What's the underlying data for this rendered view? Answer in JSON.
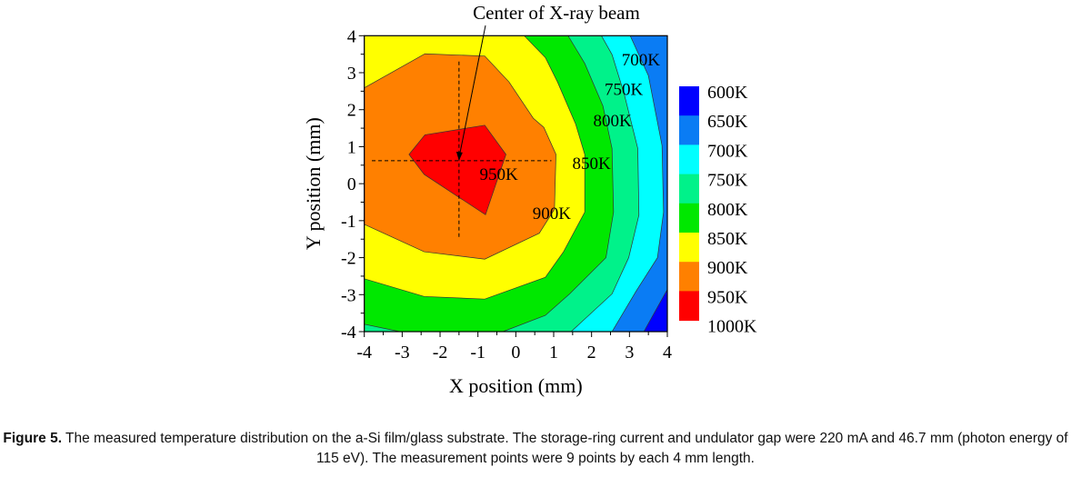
{
  "chart_data": {
    "type": "contour",
    "xlabel": "X position (mm)",
    "ylabel": "Y position (mm)",
    "xlim": [
      -4,
      4
    ],
    "ylim": [
      -4,
      4
    ],
    "xticks": [
      "-4",
      "-3",
      "-2",
      "-1",
      "0",
      "1",
      "2",
      "3",
      "4"
    ],
    "yticks": [
      "-4",
      "-3",
      "-2",
      "-1",
      "0",
      "1",
      "2",
      "3",
      "4"
    ],
    "grid": false,
    "annotation": {
      "text": "Center of X-ray beam",
      "point": [
        -1.5,
        0.62
      ]
    },
    "crosshair": {
      "x": -1.5,
      "y": 0.62
    },
    "legend": {
      "placement": "right",
      "labels": [
        "600K",
        "650K",
        "700K",
        "750K",
        "800K",
        "850K",
        "900K",
        "950K",
        "1000K"
      ],
      "colors": [
        "#0000ff",
        "#0a7cf4",
        "#00ffff",
        "#00f28a",
        "#00e800",
        "#ffff00",
        "#ff8000",
        "#ff0000"
      ]
    },
    "contour_labels": [
      {
        "text": "700K",
        "at": [
          3.3,
          3.2
        ]
      },
      {
        "text": "750K",
        "at": [
          2.85,
          2.4
        ]
      },
      {
        "text": "800K",
        "at": [
          2.55,
          1.55
        ]
      },
      {
        "text": "850K",
        "at": [
          2.0,
          0.4
        ]
      },
      {
        "text": "950K",
        "at": [
          -0.45,
          0.1
        ]
      },
      {
        "text": "900K",
        "at": [
          0.95,
          -0.95
        ]
      }
    ],
    "regions": [
      {
        "level": "650K",
        "color": "#0a7cf4",
        "points": [
          [
            -4,
            4
          ],
          [
            4,
            4
          ],
          [
            4,
            -4
          ],
          [
            -4,
            -4
          ]
        ]
      },
      {
        "level": "700K",
        "color": "#00ffff",
        "points": [
          [
            -4,
            4
          ],
          [
            3.02,
            4
          ],
          [
            3.5,
            2.92
          ],
          [
            3.86,
            1.03
          ],
          [
            3.9,
            -0.77
          ],
          [
            3.74,
            -2.0
          ],
          [
            3.18,
            -2.9
          ],
          [
            2.54,
            -4
          ],
          [
            -4,
            -4
          ]
        ]
      },
      {
        "level": "750K",
        "color": "#00f28a",
        "points": [
          [
            -4,
            4
          ],
          [
            2.26,
            4
          ],
          [
            2.54,
            3.49
          ],
          [
            2.86,
            2.43
          ],
          [
            3.22,
            0.95
          ],
          [
            3.25,
            -0.85
          ],
          [
            2.98,
            -2.0
          ],
          [
            2.54,
            -2.98
          ],
          [
            1.46,
            -4
          ],
          [
            -4,
            -4
          ]
        ]
      },
      {
        "level": "800K",
        "color": "#00e800",
        "points": [
          [
            -4,
            4
          ],
          [
            1.38,
            4
          ],
          [
            1.82,
            3.25
          ],
          [
            2.3,
            2.1
          ],
          [
            2.54,
            0.95
          ],
          [
            2.58,
            -0.77
          ],
          [
            2.38,
            -2.0
          ],
          [
            1.42,
            -2.98
          ],
          [
            0.78,
            -3.56
          ],
          [
            -0.34,
            -4
          ],
          [
            -3.06,
            -4
          ],
          [
            -4,
            -3.8
          ]
        ]
      },
      {
        "level": "850K",
        "color": "#ffff00",
        "points": [
          [
            -4,
            4
          ],
          [
            0.22,
            4
          ],
          [
            0.78,
            3.41
          ],
          [
            1.1,
            2.75
          ],
          [
            1.58,
            1.61
          ],
          [
            1.82,
            0.79
          ],
          [
            1.82,
            -0.77
          ],
          [
            1.26,
            -1.84
          ],
          [
            0.78,
            -2.53
          ],
          [
            -0.82,
            -3.12
          ],
          [
            -2.42,
            -3.05
          ],
          [
            -4,
            -2.57
          ]
        ]
      },
      {
        "level": "900K",
        "color": "#ff8000",
        "points": [
          [
            -4,
            2.59
          ],
          [
            -2.4,
            3.51
          ],
          [
            -0.82,
            3.45
          ],
          [
            -0.18,
            2.75
          ],
          [
            0.46,
            1.77
          ],
          [
            0.74,
            1.52
          ],
          [
            1.06,
            0.79
          ],
          [
            1.02,
            -0.69
          ],
          [
            0.62,
            -1.34
          ],
          [
            -0.82,
            -2.04
          ],
          [
            -2.42,
            -1.84
          ],
          [
            -4,
            -1.1
          ]
        ]
      },
      {
        "level": "950K",
        "color": "#ff0000",
        "points": [
          [
            -2.82,
            0.79
          ],
          [
            -2.4,
            1.32
          ],
          [
            -0.82,
            1.58
          ],
          [
            -0.26,
            0.79
          ],
          [
            -0.8,
            -0.84
          ],
          [
            -2.42,
            0.25
          ]
        ]
      },
      {
        "level": "600K",
        "color": "#0000ff",
        "points": [
          [
            3.38,
            -4
          ],
          [
            4,
            -2.86
          ],
          [
            4,
            -4
          ]
        ]
      }
    ]
  },
  "caption": {
    "label": "Figure 5.",
    "text": " The measured temperature distribution on the a-Si film/glass substrate. The storage-ring current and undulator gap were 220 mA and 46.7 mm (photon energy of 115 eV). The measurement points were 9 points by each 4 mm length."
  }
}
